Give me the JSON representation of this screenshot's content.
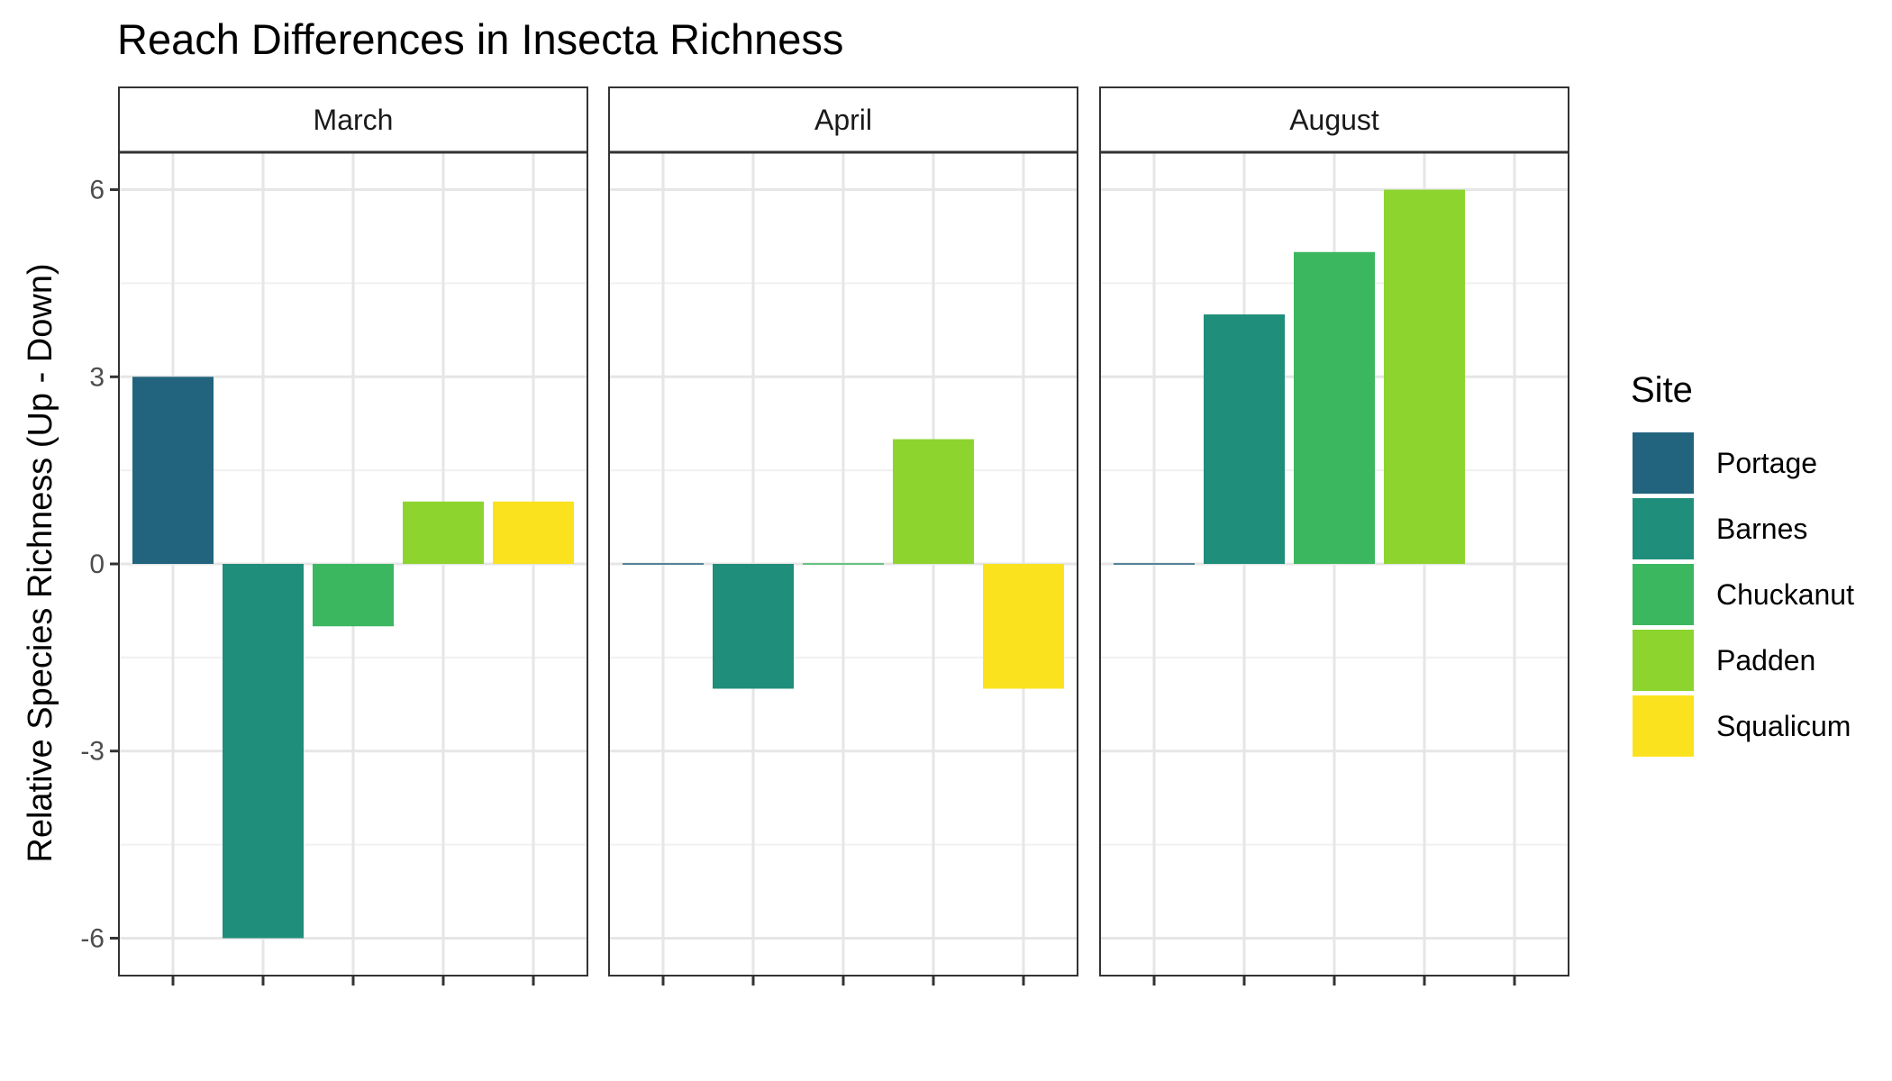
{
  "chart_data": {
    "type": "bar",
    "title": "Reach Differences in Insecta Richness",
    "ylabel": "Relative Species Richness (Up - Down)",
    "xlabel": "",
    "ylim": [
      -6.6,
      6.6
    ],
    "yticks": [
      -6,
      -3,
      0,
      3,
      6
    ],
    "ytick_labels": [
      "-6",
      "-3",
      "0",
      "3",
      "6"
    ],
    "grid": true,
    "legend": {
      "title": "Site",
      "placement": "right",
      "entries": [
        "Portage",
        "Barnes",
        "Chuckanut",
        "Padden",
        "Squalicum"
      ]
    },
    "categories": [
      "Portage",
      "Barnes",
      "Chuckanut",
      "Padden",
      "Squalicum"
    ],
    "colors": [
      "#22647e",
      "#1f8e7b",
      "#3bb75f",
      "#8dd42f",
      "#fbe21e"
    ],
    "facets": [
      {
        "name": "March",
        "values": [
          3,
          -6,
          -1,
          1,
          1
        ]
      },
      {
        "name": "April",
        "values": [
          0,
          -2,
          0,
          2,
          -2
        ]
      },
      {
        "name": "August",
        "values": [
          0,
          4,
          5,
          6,
          null
        ]
      }
    ]
  }
}
